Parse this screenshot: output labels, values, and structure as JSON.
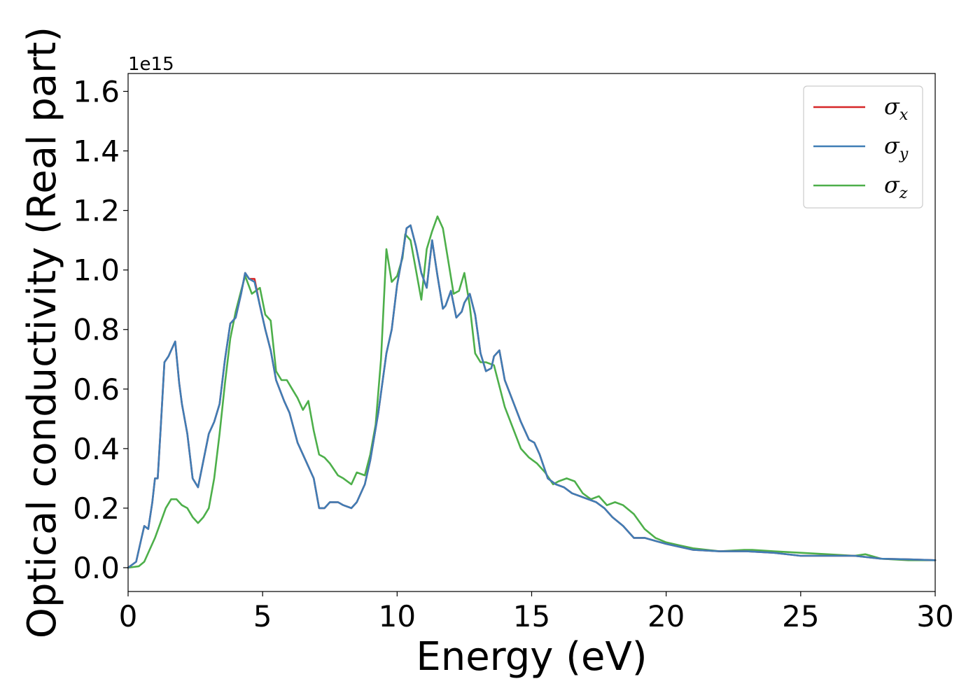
{
  "chart_data": {
    "type": "line",
    "xlabel": "Energy (eV)",
    "ylabel": "Optical conductivity (Real part)",
    "y_offset_label": "1e15",
    "xlim": [
      0,
      30
    ],
    "ylim": [
      -0.08,
      1.66
    ],
    "x_ticks": [
      0,
      5,
      10,
      15,
      20,
      25,
      30
    ],
    "x_tick_labels": [
      "0",
      "5",
      "10",
      "15",
      "20",
      "25",
      "30"
    ],
    "y_ticks": [
      0.0,
      0.2,
      0.4,
      0.6,
      0.8,
      1.0,
      1.2,
      1.4,
      1.6
    ],
    "y_tick_labels": [
      "0.0",
      "0.2",
      "0.4",
      "0.6",
      "0.8",
      "1.0",
      "1.2",
      "1.4",
      "1.6"
    ],
    "grid": false,
    "legend_position": "top-right",
    "series": [
      {
        "name": "σx",
        "legend_symbol": "σ",
        "legend_subscript": "x",
        "color": "#d62728",
        "x": [
          0,
          0.3,
          0.5,
          0.6,
          0.75,
          0.9,
          1.0,
          1.1,
          1.2,
          1.35,
          1.5,
          1.6,
          1.75,
          1.9,
          2.0,
          2.2,
          2.4,
          2.6,
          2.8,
          3.0,
          3.2,
          3.4,
          3.6,
          3.8,
          4.0,
          4.2,
          4.35,
          4.5,
          4.7,
          4.9,
          5.1,
          5.3,
          5.5,
          5.8,
          6.0,
          6.3,
          6.6,
          6.9,
          7.1,
          7.3,
          7.5,
          7.8,
          8.0,
          8.3,
          8.5,
          8.8,
          9.0,
          9.3,
          9.6,
          9.8,
          10.0,
          10.2,
          10.35,
          10.5,
          10.7,
          10.9,
          11.1,
          11.3,
          11.5,
          11.7,
          11.8,
          12.0,
          12.2,
          12.4,
          12.5,
          12.7,
          12.9,
          13.1,
          13.3,
          13.5,
          13.6,
          13.8,
          14.0,
          14.3,
          14.6,
          14.9,
          15.1,
          15.3,
          15.6,
          15.9,
          16.2,
          16.5,
          16.8,
          17.1,
          17.4,
          17.7,
          18.0,
          18.4,
          18.8,
          19.2,
          19.6,
          20.0,
          20.5,
          21.0,
          22.0,
          23.0,
          24.0,
          25.0,
          26.0,
          27.0,
          28.0,
          29.0,
          30.0
        ],
        "y": [
          0,
          0.02,
          0.1,
          0.14,
          0.13,
          0.22,
          0.3,
          0.3,
          0.45,
          0.69,
          0.71,
          0.73,
          0.76,
          0.62,
          0.55,
          0.45,
          0.3,
          0.27,
          0.36,
          0.45,
          0.49,
          0.55,
          0.7,
          0.82,
          0.84,
          0.92,
          0.99,
          0.97,
          0.97,
          0.88,
          0.8,
          0.73,
          0.63,
          0.56,
          0.52,
          0.42,
          0.36,
          0.3,
          0.2,
          0.2,
          0.22,
          0.22,
          0.21,
          0.2,
          0.22,
          0.28,
          0.36,
          0.52,
          0.72,
          0.8,
          0.95,
          1.05,
          1.14,
          1.15,
          1.08,
          0.99,
          0.94,
          1.1,
          0.98,
          0.87,
          0.88,
          0.93,
          0.84,
          0.86,
          0.89,
          0.92,
          0.85,
          0.72,
          0.66,
          0.67,
          0.71,
          0.73,
          0.63,
          0.56,
          0.49,
          0.43,
          0.42,
          0.38,
          0.3,
          0.28,
          0.27,
          0.25,
          0.24,
          0.23,
          0.22,
          0.2,
          0.17,
          0.14,
          0.1,
          0.1,
          0.09,
          0.08,
          0.07,
          0.06,
          0.055,
          0.055,
          0.05,
          0.04,
          0.04,
          0.04,
          0.03,
          0.028,
          0.025
        ]
      },
      {
        "name": "σy",
        "legend_symbol": "σ",
        "legend_subscript": "y",
        "color": "#3f7db5",
        "x": [
          0,
          0.3,
          0.5,
          0.6,
          0.75,
          0.9,
          1.0,
          1.1,
          1.2,
          1.35,
          1.5,
          1.6,
          1.75,
          1.9,
          2.0,
          2.2,
          2.4,
          2.6,
          2.8,
          3.0,
          3.2,
          3.4,
          3.6,
          3.8,
          4.0,
          4.2,
          4.35,
          4.5,
          4.7,
          4.9,
          5.1,
          5.3,
          5.5,
          5.8,
          6.0,
          6.3,
          6.6,
          6.9,
          7.1,
          7.3,
          7.5,
          7.8,
          8.0,
          8.3,
          8.5,
          8.8,
          9.0,
          9.3,
          9.6,
          9.8,
          10.0,
          10.2,
          10.35,
          10.5,
          10.7,
          10.9,
          11.1,
          11.3,
          11.5,
          11.7,
          11.8,
          12.0,
          12.2,
          12.4,
          12.5,
          12.7,
          12.9,
          13.1,
          13.3,
          13.5,
          13.6,
          13.8,
          14.0,
          14.3,
          14.6,
          14.9,
          15.1,
          15.3,
          15.6,
          15.9,
          16.2,
          16.5,
          16.8,
          17.1,
          17.4,
          17.7,
          18.0,
          18.4,
          18.8,
          19.2,
          19.6,
          20.0,
          20.5,
          21.0,
          22.0,
          23.0,
          24.0,
          25.0,
          26.0,
          27.0,
          28.0,
          29.0,
          30.0
        ],
        "y": [
          0,
          0.02,
          0.1,
          0.14,
          0.13,
          0.22,
          0.3,
          0.3,
          0.45,
          0.69,
          0.71,
          0.73,
          0.76,
          0.62,
          0.55,
          0.45,
          0.3,
          0.27,
          0.36,
          0.45,
          0.49,
          0.55,
          0.7,
          0.82,
          0.84,
          0.92,
          0.99,
          0.97,
          0.96,
          0.88,
          0.8,
          0.73,
          0.63,
          0.56,
          0.52,
          0.42,
          0.36,
          0.3,
          0.2,
          0.2,
          0.22,
          0.22,
          0.21,
          0.2,
          0.22,
          0.28,
          0.36,
          0.52,
          0.72,
          0.8,
          0.95,
          1.05,
          1.14,
          1.15,
          1.08,
          0.99,
          0.94,
          1.1,
          0.98,
          0.87,
          0.88,
          0.93,
          0.84,
          0.86,
          0.89,
          0.92,
          0.85,
          0.72,
          0.66,
          0.67,
          0.71,
          0.73,
          0.63,
          0.56,
          0.49,
          0.43,
          0.42,
          0.38,
          0.3,
          0.28,
          0.27,
          0.25,
          0.24,
          0.23,
          0.22,
          0.2,
          0.17,
          0.14,
          0.1,
          0.1,
          0.09,
          0.08,
          0.07,
          0.06,
          0.055,
          0.055,
          0.05,
          0.04,
          0.04,
          0.04,
          0.03,
          0.028,
          0.025
        ]
      },
      {
        "name": "σz",
        "legend_symbol": "σ",
        "legend_subscript": "z",
        "color": "#4daf4a",
        "x": [
          0,
          0.4,
          0.6,
          0.8,
          1.0,
          1.2,
          1.4,
          1.6,
          1.8,
          2.0,
          2.2,
          2.4,
          2.6,
          2.8,
          3.0,
          3.2,
          3.4,
          3.6,
          3.8,
          4.0,
          4.2,
          4.35,
          4.6,
          4.9,
          5.1,
          5.3,
          5.5,
          5.7,
          5.9,
          6.1,
          6.3,
          6.5,
          6.7,
          6.9,
          7.1,
          7.3,
          7.5,
          7.8,
          8.0,
          8.3,
          8.5,
          8.8,
          9.0,
          9.2,
          9.4,
          9.6,
          9.8,
          10.0,
          10.2,
          10.3,
          10.5,
          10.7,
          10.9,
          11.1,
          11.3,
          11.5,
          11.7,
          11.9,
          12.1,
          12.3,
          12.5,
          12.7,
          12.9,
          13.1,
          13.3,
          13.6,
          13.8,
          14.0,
          14.3,
          14.6,
          14.9,
          15.2,
          15.5,
          15.8,
          16.0,
          16.3,
          16.6,
          16.9,
          17.2,
          17.5,
          17.8,
          18.1,
          18.4,
          18.8,
          19.2,
          19.6,
          20.0,
          20.5,
          21.0,
          22.0,
          22.9,
          23.2,
          24.0,
          25.0,
          26.0,
          27.0,
          27.4,
          28.0,
          29.0,
          30.0
        ],
        "y": [
          0,
          0.005,
          0.02,
          0.06,
          0.1,
          0.15,
          0.2,
          0.23,
          0.23,
          0.21,
          0.2,
          0.17,
          0.15,
          0.17,
          0.2,
          0.3,
          0.45,
          0.62,
          0.77,
          0.86,
          0.93,
          0.98,
          0.92,
          0.94,
          0.85,
          0.83,
          0.66,
          0.63,
          0.63,
          0.6,
          0.57,
          0.53,
          0.56,
          0.46,
          0.38,
          0.37,
          0.35,
          0.31,
          0.3,
          0.28,
          0.32,
          0.31,
          0.38,
          0.48,
          0.7,
          1.07,
          0.96,
          0.98,
          1.04,
          1.12,
          1.1,
          1.0,
          0.9,
          1.07,
          1.13,
          1.18,
          1.14,
          1.03,
          0.92,
          0.93,
          0.99,
          0.88,
          0.72,
          0.69,
          0.69,
          0.68,
          0.61,
          0.54,
          0.47,
          0.4,
          0.37,
          0.35,
          0.32,
          0.28,
          0.29,
          0.3,
          0.29,
          0.25,
          0.23,
          0.24,
          0.21,
          0.22,
          0.21,
          0.18,
          0.13,
          0.1,
          0.085,
          0.075,
          0.065,
          0.055,
          0.06,
          0.06,
          0.055,
          0.05,
          0.045,
          0.04,
          0.045,
          0.03,
          0.025,
          0.025
        ]
      }
    ]
  }
}
